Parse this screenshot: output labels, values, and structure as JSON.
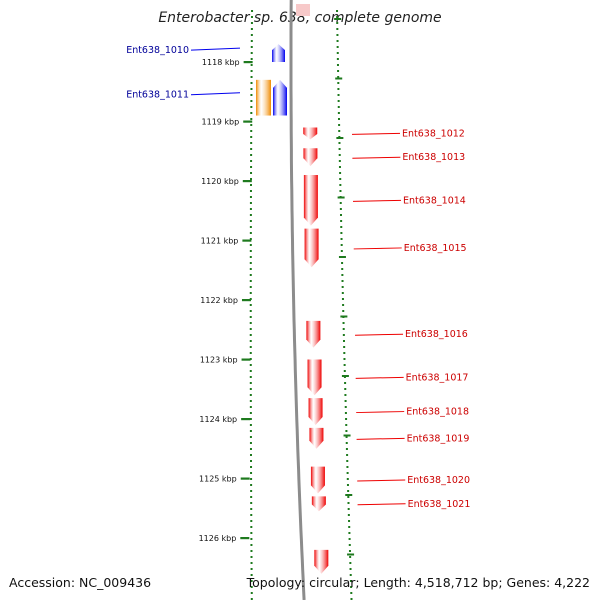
{
  "header": {
    "title": "Enterobacter sp. 638, complete genome"
  },
  "footer": {
    "accession": "Accession: NC_009436",
    "topology": "Topology: circular; Length: 4,518,712 bp; Genes: 4,222"
  },
  "colors": {
    "backbone": "#8c8c8c",
    "tick": "#1e7a1e",
    "forward_gene": "#0000ee",
    "forward_label": "#000099",
    "reverse_gene": "#ee0000",
    "reverse_label": "#cc0000",
    "highlight_gene": "#f08a00"
  },
  "scale": {
    "unit_suffix": "kbp",
    "major_ticks": [
      "1118 kbp",
      "1119 kbp",
      "1120 kbp",
      "1121 kbp",
      "1122 kbp",
      "1123 kbp",
      "1124 kbp",
      "1125 kbp",
      "1126 kbp"
    ]
  },
  "genes": [
    {
      "id": "Ent638_1010",
      "strand": "forward",
      "start_kbp": 1117.7,
      "end_kbp": 1118.0
    },
    {
      "id": "Ent638_1011",
      "strand": "forward",
      "start_kbp": 1118.3,
      "end_kbp": 1118.9,
      "highlight": true
    },
    {
      "id": "Ent638_1012",
      "strand": "reverse",
      "start_kbp": 1119.1,
      "end_kbp": 1119.3
    },
    {
      "id": "Ent638_1013",
      "strand": "reverse",
      "start_kbp": 1119.45,
      "end_kbp": 1119.75
    },
    {
      "id": "Ent638_1014",
      "strand": "reverse",
      "start_kbp": 1119.9,
      "end_kbp": 1120.75
    },
    {
      "id": "Ent638_1015",
      "strand": "reverse",
      "start_kbp": 1120.8,
      "end_kbp": 1121.45
    },
    {
      "id": "Ent638_1016",
      "strand": "reverse",
      "start_kbp": 1122.35,
      "end_kbp": 1122.8
    },
    {
      "id": "Ent638_1017",
      "strand": "reverse",
      "start_kbp": 1123.0,
      "end_kbp": 1123.6
    },
    {
      "id": "Ent638_1018",
      "strand": "reverse",
      "start_kbp": 1123.65,
      "end_kbp": 1124.1
    },
    {
      "id": "Ent638_1019",
      "strand": "reverse",
      "start_kbp": 1124.15,
      "end_kbp": 1124.5
    },
    {
      "id": "Ent638_1020",
      "strand": "reverse",
      "start_kbp": 1124.8,
      "end_kbp": 1125.25
    },
    {
      "id": "Ent638_1021",
      "strand": "reverse",
      "start_kbp": 1125.3,
      "end_kbp": 1125.55
    },
    {
      "id": "",
      "strand": "reverse",
      "start_kbp": 1126.2,
      "end_kbp": 1126.6
    }
  ]
}
